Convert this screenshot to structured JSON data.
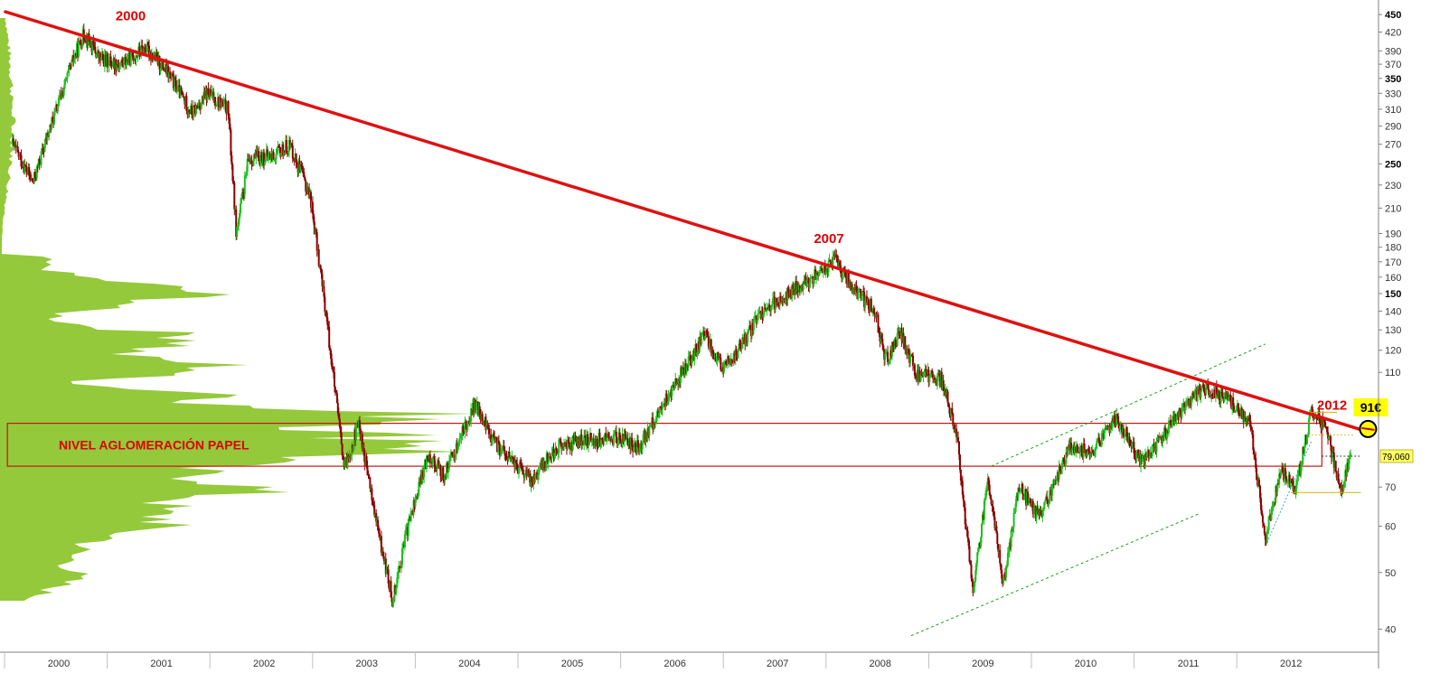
{
  "chart_data": {
    "type": "candlestick",
    "scale": "log",
    "ylim": [
      38,
      455
    ],
    "y_ticks": [
      40,
      50,
      60,
      70,
      110,
      120,
      130,
      140,
      150,
      160,
      170,
      180,
      190,
      210,
      230,
      250,
      270,
      290,
      310,
      330,
      350,
      370,
      390,
      420,
      450
    ],
    "y_ticks_bold": [
      150,
      250,
      350,
      450
    ],
    "x_labels": [
      "2000",
      "2001",
      "2002",
      "2003",
      "2004",
      "2005",
      "2006",
      "2007",
      "2008",
      "2009",
      "2010",
      "2011",
      "2012"
    ],
    "grid": false,
    "colors": {
      "up": "#1fbf1f",
      "down": "#8b0000",
      "trendline": "#e01010",
      "volume_profile": "#94c93b",
      "channel": "#19a019",
      "zone": "#c81414",
      "highlight": "#ffff00"
    },
    "price_path": [
      {
        "t": 1999.55,
        "p": 270
      },
      {
        "t": 1999.75,
        "p": 232
      },
      {
        "t": 1999.92,
        "p": 290
      },
      {
        "t": 2000.15,
        "p": 380
      },
      {
        "t": 2000.25,
        "p": 418
      },
      {
        "t": 2000.4,
        "p": 378
      },
      {
        "t": 2000.6,
        "p": 370
      },
      {
        "t": 2000.85,
        "p": 395
      },
      {
        "t": 2001.05,
        "p": 360
      },
      {
        "t": 2001.3,
        "p": 305
      },
      {
        "t": 2001.45,
        "p": 330
      },
      {
        "t": 2001.65,
        "p": 310
      },
      {
        "t": 2001.73,
        "p": 190
      },
      {
        "t": 2001.85,
        "p": 255
      },
      {
        "t": 2002.1,
        "p": 258
      },
      {
        "t": 2002.25,
        "p": 270
      },
      {
        "t": 2002.45,
        "p": 220
      },
      {
        "t": 2002.6,
        "p": 140
      },
      {
        "t": 2002.78,
        "p": 75
      },
      {
        "t": 2002.92,
        "p": 90
      },
      {
        "t": 2003.1,
        "p": 60
      },
      {
        "t": 2003.25,
        "p": 45
      },
      {
        "t": 2003.4,
        "p": 60
      },
      {
        "t": 2003.6,
        "p": 80
      },
      {
        "t": 2003.75,
        "p": 73
      },
      {
        "t": 2004.05,
        "p": 97
      },
      {
        "t": 2004.25,
        "p": 83
      },
      {
        "t": 2004.6,
        "p": 72
      },
      {
        "t": 2004.85,
        "p": 82
      },
      {
        "t": 2005.1,
        "p": 84
      },
      {
        "t": 2005.45,
        "p": 85
      },
      {
        "t": 2005.65,
        "p": 82
      },
      {
        "t": 2006.0,
        "p": 105
      },
      {
        "t": 2006.3,
        "p": 128
      },
      {
        "t": 2006.45,
        "p": 112
      },
      {
        "t": 2006.6,
        "p": 118
      },
      {
        "t": 2006.85,
        "p": 140
      },
      {
        "t": 2007.15,
        "p": 152
      },
      {
        "t": 2007.45,
        "p": 165
      },
      {
        "t": 2007.55,
        "p": 172
      },
      {
        "t": 2007.75,
        "p": 152
      },
      {
        "t": 2007.95,
        "p": 140
      },
      {
        "t": 2008.05,
        "p": 115
      },
      {
        "t": 2008.2,
        "p": 128
      },
      {
        "t": 2008.35,
        "p": 110
      },
      {
        "t": 2008.6,
        "p": 107
      },
      {
        "t": 2008.75,
        "p": 85
      },
      {
        "t": 2008.9,
        "p": 46
      },
      {
        "t": 2009.05,
        "p": 72
      },
      {
        "t": 2009.2,
        "p": 48
      },
      {
        "t": 2009.35,
        "p": 70
      },
      {
        "t": 2009.55,
        "p": 62
      },
      {
        "t": 2009.85,
        "p": 82
      },
      {
        "t": 2010.05,
        "p": 80
      },
      {
        "t": 2010.3,
        "p": 92
      },
      {
        "t": 2010.55,
        "p": 77
      },
      {
        "t": 2010.8,
        "p": 88
      },
      {
        "t": 2011.15,
        "p": 104
      },
      {
        "t": 2011.4,
        "p": 98
      },
      {
        "t": 2011.6,
        "p": 90
      },
      {
        "t": 2011.75,
        "p": 57
      },
      {
        "t": 2011.9,
        "p": 75
      },
      {
        "t": 2012.05,
        "p": 70
      },
      {
        "t": 2012.2,
        "p": 95
      },
      {
        "t": 2012.35,
        "p": 88
      },
      {
        "t": 2012.48,
        "p": 68
      },
      {
        "t": 2012.58,
        "p": 79
      }
    ],
    "trendline": {
      "from": {
        "t": 1999.48,
        "p": 455
      },
      "to": {
        "t": 2012.75,
        "p": 87
      }
    },
    "channel_upper": {
      "from": {
        "t": 2009.08,
        "p": 76
      },
      "to": {
        "t": 2011.75,
        "p": 123
      }
    },
    "channel_lower": {
      "from": {
        "t": 2008.3,
        "p": 39
      },
      "to": {
        "t": 2011.1,
        "p": 63
      }
    },
    "zone": {
      "t_start": 1999.5,
      "t_end": 2012.3,
      "p_low": 76,
      "p_high": 90,
      "label": "NIVEL AGLOMERACIÓN PAPEL"
    },
    "annotations": [
      {
        "text": "2000",
        "t": 2000.7,
        "p": 440
      },
      {
        "text": "2007",
        "t": 2007.5,
        "p": 183
      },
      {
        "text": "2012",
        "t": 2012.4,
        "p": 95
      }
    ],
    "target": {
      "text": "91€",
      "t": 2012.75,
      "p": 88
    },
    "last_price": {
      "label": "79,060",
      "p": 79.06
    },
    "support_level": 68.5,
    "resistance_level": 94
  }
}
